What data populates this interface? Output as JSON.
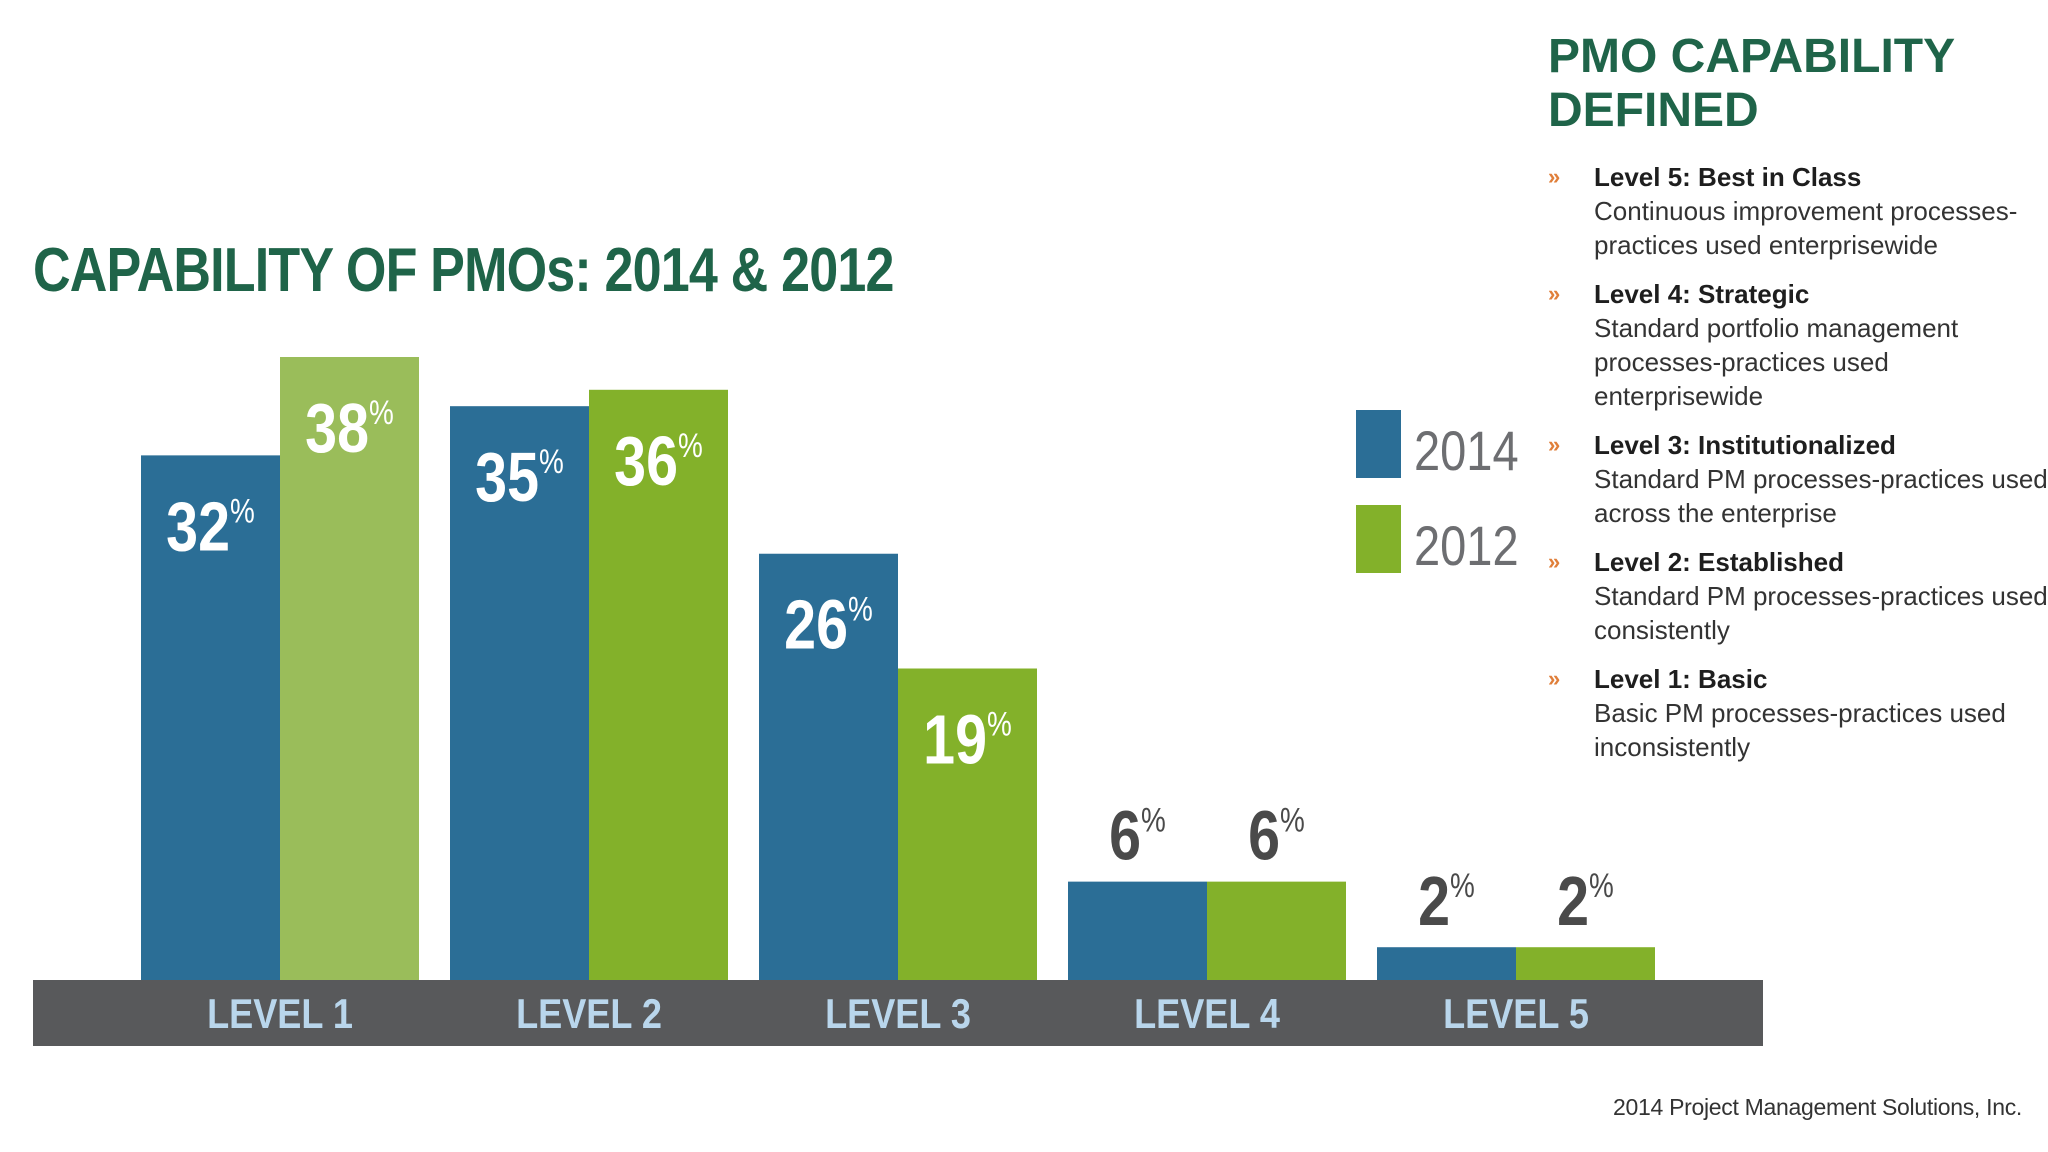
{
  "chart_data": {
    "type": "bar",
    "title": "CAPABILITY OF PMOs: 2014 & 2012",
    "categories": [
      "LEVEL 1",
      "LEVEL 2",
      "LEVEL 3",
      "LEVEL 4",
      "LEVEL 5"
    ],
    "series": [
      {
        "name": "2014",
        "values": [
          32,
          35,
          26,
          6,
          2
        ],
        "color": "#2b6e96"
      },
      {
        "name": "2012",
        "values": [
          38,
          36,
          19,
          6,
          2
        ],
        "color": "#83b12a"
      }
    ],
    "level1_2012_color": "#9abd5a",
    "unit_suffix": "%",
    "ylim": [
      0,
      38
    ],
    "axis_band_color": "#58595b",
    "axis_label_color": "#b9d6ec",
    "legend_position": "right",
    "grid": false
  },
  "side_panel": {
    "title": "PMO CAPABILITY DEFINED",
    "bullet": "»",
    "items": [
      {
        "label": "Level 5: Best in Class",
        "desc": "Continuous improvement processes-practices used enterprisewide"
      },
      {
        "label": "Level 4: Strategic",
        "desc": "Standard portfolio management processes-practices used enterprisewide"
      },
      {
        "label": "Level 3: Institutionalized",
        "desc": "Standard PM processes-practices used across the enterprise"
      },
      {
        "label": "Level 2: Established",
        "desc": "Standard PM processes-practices used consistently"
      },
      {
        "label": "Level 1: Basic",
        "desc": "Basic PM processes-practices used inconsistently"
      }
    ]
  },
  "footer": {
    "credit": "2014 Project Management Solutions, Inc."
  }
}
